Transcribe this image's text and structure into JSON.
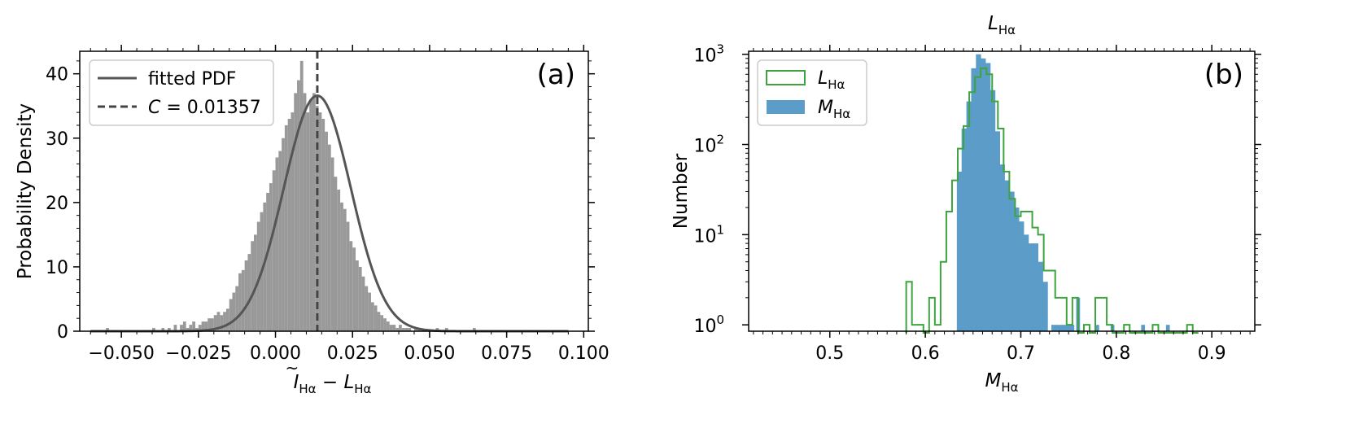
{
  "chart_data": [
    {
      "panel_label": "(a)",
      "type": "bar",
      "xlabel": "Ĩ_Hα − L_Hα",
      "xlabel_parts": {
        "i_base": "I",
        "i_sub": "Hα",
        "minus": " − ",
        "l_base": "L",
        "l_sub": "Hα"
      },
      "ylabel": "Probability Density",
      "xlim": [
        -0.0635,
        0.1015
      ],
      "ylim": [
        0,
        43.5
      ],
      "xticks": [
        -0.05,
        -0.025,
        0.0,
        0.025,
        0.05,
        0.075,
        0.1
      ],
      "xtick_labels": [
        "−0.050",
        "−0.025",
        "0.000",
        "0.025",
        "0.050",
        "0.075",
        "0.100"
      ],
      "yticks": [
        0,
        10,
        20,
        30,
        40
      ],
      "ytick_labels": [
        "0",
        "10",
        "20",
        "30",
        "40"
      ],
      "grid": false,
      "legend_placement": "upper left",
      "legend": [
        {
          "label": "fitted PDF",
          "style": "solid"
        },
        {
          "label_base": "C",
          "label_rest": " = 0.01357",
          "style": "dashed"
        }
      ],
      "histogram": {
        "color": "#999999",
        "bin_width": 0.001,
        "bin_start": -0.06,
        "densities": [
          0,
          0,
          0,
          0,
          0,
          0.5,
          0,
          0,
          0,
          0,
          0,
          0,
          0,
          0,
          0,
          0,
          0,
          0,
          0,
          0,
          0.5,
          0,
          0,
          0.5,
          0,
          0.5,
          0,
          1,
          0,
          1,
          1.5,
          0.5,
          1,
          1.5,
          0.5,
          1,
          1.5,
          1.5,
          2,
          2,
          2.5,
          3,
          2.5,
          3,
          3.5,
          5,
          6,
          7,
          9,
          9.5,
          11,
          12,
          14,
          15,
          17,
          18.5,
          20,
          21.5,
          23,
          25,
          27,
          28,
          30,
          32,
          33,
          34,
          37,
          39,
          42,
          37,
          34,
          36,
          37,
          35,
          34,
          33,
          31,
          29,
          27,
          24,
          22,
          20,
          19,
          17,
          14,
          13,
          11,
          10,
          8.5,
          7,
          6,
          4.5,
          4,
          3,
          2.5,
          2,
          1.5,
          1,
          1,
          0.5,
          1,
          0.5,
          0.5,
          0.5,
          0,
          0.5,
          0.5,
          0,
          0,
          0,
          0,
          0,
          0.5,
          0,
          0,
          0.5,
          0,
          0,
          0,
          0,
          0,
          0,
          0,
          0,
          0.5,
          0,
          0,
          0,
          0,
          0,
          0,
          0,
          0,
          0,
          0,
          0,
          0,
          0,
          0,
          0,
          0,
          0,
          0,
          0,
          0,
          0,
          0,
          0,
          0
        ]
      },
      "fitted_pdf": {
        "mu": 0.01357,
        "sigma": 0.0109,
        "amplitude": 36.6,
        "color": "#555555",
        "x_range": [
          -0.06,
          0.095
        ]
      },
      "vline": {
        "x": 0.01357,
        "color": "#444444",
        "style": "dashed"
      }
    },
    {
      "panel_label": "(b)",
      "type": "bar",
      "xlabel_base": "M",
      "xlabel_sub": "Hα",
      "top_label_base": "L",
      "top_label_sub": "Hα",
      "ylabel": "Number",
      "yscale": "log",
      "xlim": [
        0.415,
        0.945
      ],
      "ylim": [
        0.85,
        1080
      ],
      "xticks": [
        0.5,
        0.6,
        0.7,
        0.8,
        0.9
      ],
      "xtick_labels": [
        "0.5",
        "0.6",
        "0.7",
        "0.8",
        "0.9"
      ],
      "yticks": [
        1,
        10,
        100,
        1000
      ],
      "ytick_bases": [
        "10",
        "10",
        "10",
        "10"
      ],
      "ytick_exps": [
        "0",
        "1",
        "2",
        "3"
      ],
      "grid": false,
      "legend_placement": "upper left",
      "legend": [
        {
          "label_base": "L",
          "label_sub": "Hα",
          "style": "step"
        },
        {
          "label_base": "M",
          "label_sub": "Hα",
          "style": "filled"
        }
      ],
      "L_step": {
        "color": "#3fa33f",
        "edges": [
          0.58,
          0.586,
          0.592,
          0.598,
          0.604,
          0.61,
          0.616,
          0.622,
          0.628,
          0.634,
          0.64,
          0.646,
          0.652,
          0.658,
          0.664,
          0.67,
          0.676,
          0.682,
          0.688,
          0.694,
          0.7,
          0.706,
          0.712,
          0.718,
          0.724,
          0.73,
          0.736,
          0.742,
          0.748,
          0.754,
          0.76,
          0.766,
          0.772,
          0.778,
          0.784,
          0.79,
          0.796,
          0.802,
          0.808,
          0.814,
          0.82,
          0.826,
          0.832,
          0.838,
          0.844,
          0.85,
          0.856,
          0.862,
          0.868,
          0.874,
          0.88,
          0.886
        ],
        "counts": [
          3,
          1,
          1,
          0,
          2,
          1,
          5,
          18,
          40,
          90,
          160,
          380,
          560,
          700,
          600,
          300,
          150,
          50,
          25,
          16,
          18,
          18,
          12,
          10,
          4,
          4,
          2,
          2,
          1,
          2,
          0,
          1,
          0,
          2,
          2,
          1,
          0,
          0,
          1,
          0,
          0,
          0,
          0,
          1,
          0,
          0,
          0,
          0,
          0,
          1,
          0
        ]
      },
      "M_filled": {
        "color": "#5b9cc9",
        "edges": [
          0.633,
          0.638,
          0.643,
          0.648,
          0.653,
          0.658,
          0.663,
          0.668,
          0.673,
          0.678,
          0.683,
          0.688,
          0.693,
          0.698,
          0.703,
          0.708,
          0.713,
          0.718,
          0.723,
          0.728
        ],
        "counts": [
          50,
          150,
          300,
          700,
          1000,
          900,
          800,
          400,
          140,
          60,
          40,
          30,
          20,
          14,
          10,
          8,
          8,
          5,
          3
        ],
        "extra_bars": [
          {
            "x0": 0.732,
            "x1": 0.756,
            "count": 1
          },
          {
            "x0": 0.758,
            "x1": 0.762,
            "count": 2
          },
          {
            "x0": 0.778,
            "x1": 0.782,
            "count": 1
          },
          {
            "x0": 0.794,
            "x1": 0.798,
            "count": 1
          },
          {
            "x0": 0.826,
            "x1": 0.83,
            "count": 1
          },
          {
            "x0": 0.852,
            "x1": 0.856,
            "count": 1
          }
        ]
      }
    }
  ]
}
